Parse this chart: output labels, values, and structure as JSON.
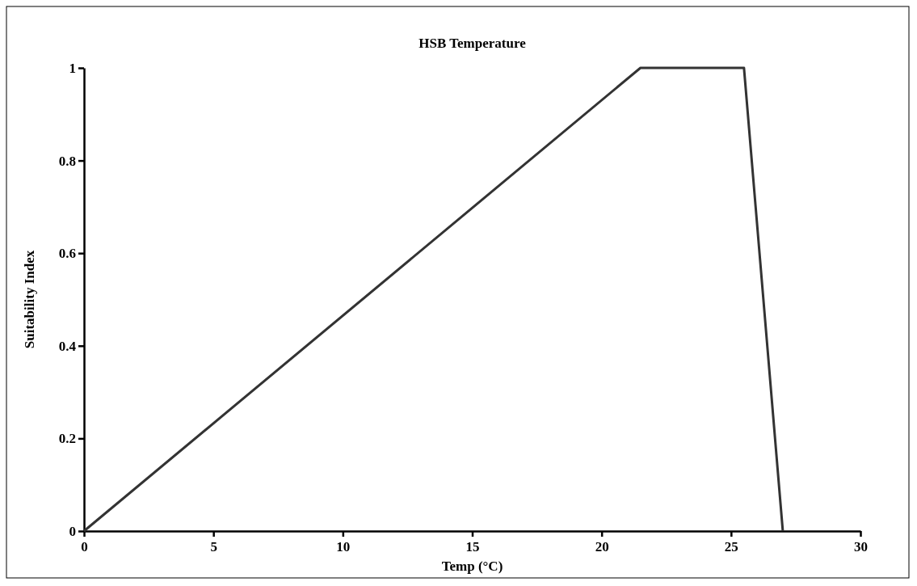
{
  "chart_data": {
    "type": "line",
    "title": "HSB Temperature",
    "xlabel": "Temp (°C)",
    "ylabel": "Suitability Index",
    "x": [
      0,
      21.5,
      25.5,
      27
    ],
    "series": [
      {
        "color": "#333333",
        "values": [
          0,
          1,
          1,
          0
        ]
      }
    ],
    "xlim": [
      0,
      30
    ],
    "xticks": [
      0,
      5,
      10,
      15,
      20,
      25,
      30
    ],
    "ylim": [
      0,
      1
    ],
    "yticks": [
      0,
      0.2,
      0.4,
      0.6,
      0.8,
      1
    ],
    "grid": false,
    "marker": "none",
    "line_style": "solid"
  }
}
